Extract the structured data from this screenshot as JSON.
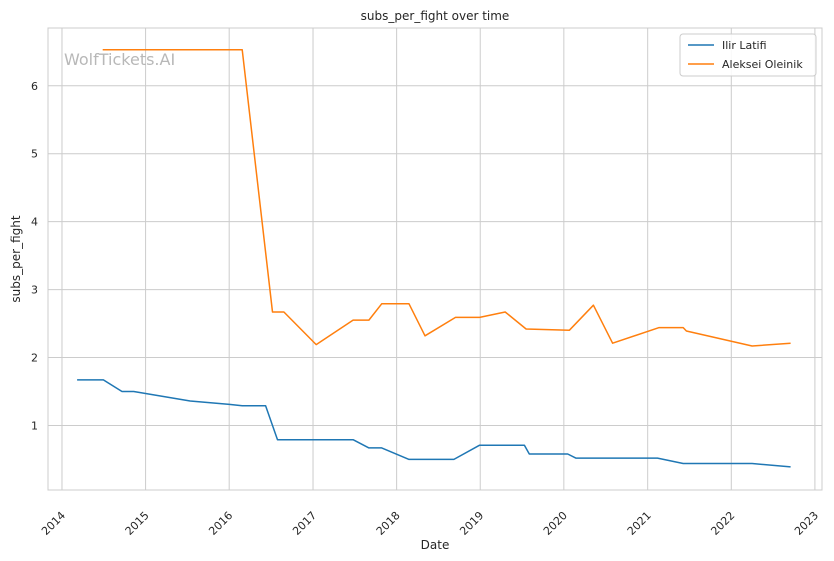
{
  "chart_data": {
    "type": "line",
    "title": "subs_per_fight over time",
    "xlabel": "Date",
    "ylabel": "subs_per_fight",
    "watermark": "WolfTickets.AI",
    "xlim": [
      "2013-11-01",
      "2023-02-01"
    ],
    "ylim": [
      0.05,
      6.85
    ],
    "x_ticks": [
      "2014",
      "2015",
      "2016",
      "2017",
      "2018",
      "2019",
      "2020",
      "2021",
      "2022",
      "2023"
    ],
    "y_ticks": [
      1,
      2,
      3,
      4,
      5,
      6
    ],
    "grid": true,
    "legend_position": "top-right",
    "series": [
      {
        "name": "Ilir Latifi",
        "color": "#1f77b4",
        "points": [
          [
            "2014-03-08",
            1.67
          ],
          [
            "2014-07-01",
            1.67
          ],
          [
            "2014-09-20",
            1.5
          ],
          [
            "2014-11-10",
            1.5
          ],
          [
            "2015-07-15",
            1.36
          ],
          [
            "2016-01-02",
            1.31
          ],
          [
            "2016-02-27",
            1.29
          ],
          [
            "2016-06-08",
            1.29
          ],
          [
            "2016-07-30",
            0.79
          ],
          [
            "2017-06-25",
            0.79
          ],
          [
            "2017-09-02",
            0.67
          ],
          [
            "2017-10-28",
            0.67
          ],
          [
            "2018-02-24",
            0.5
          ],
          [
            "2018-09-08",
            0.5
          ],
          [
            "2018-12-29",
            0.71
          ],
          [
            "2019-07-13",
            0.71
          ],
          [
            "2019-08-03",
            0.58
          ],
          [
            "2020-01-18",
            0.58
          ],
          [
            "2020-02-22",
            0.52
          ],
          [
            "2021-02-13",
            0.52
          ],
          [
            "2021-06-05",
            0.44
          ],
          [
            "2022-04-02",
            0.44
          ],
          [
            "2022-09-17",
            0.39
          ]
        ]
      },
      {
        "name": "Aleksei Oleinik",
        "color": "#ff7f0e",
        "points": [
          [
            "2014-06-28",
            6.53
          ],
          [
            "2016-02-27",
            6.53
          ],
          [
            "2016-07-08",
            2.67
          ],
          [
            "2016-08-27",
            2.67
          ],
          [
            "2017-01-15",
            2.19
          ],
          [
            "2017-06-25",
            2.55
          ],
          [
            "2017-09-02",
            2.55
          ],
          [
            "2017-10-28",
            2.79
          ],
          [
            "2018-02-24",
            2.79
          ],
          [
            "2018-05-05",
            2.32
          ],
          [
            "2018-09-15",
            2.59
          ],
          [
            "2018-12-29",
            2.59
          ],
          [
            "2019-04-20",
            2.67
          ],
          [
            "2019-07-20",
            2.42
          ],
          [
            "2020-01-25",
            2.4
          ],
          [
            "2020-05-09",
            2.77
          ],
          [
            "2020-08-01",
            2.21
          ],
          [
            "2021-02-20",
            2.44
          ],
          [
            "2021-06-05",
            2.44
          ],
          [
            "2021-06-19",
            2.39
          ],
          [
            "2022-04-02",
            2.17
          ],
          [
            "2022-09-17",
            2.21
          ]
        ]
      }
    ]
  }
}
